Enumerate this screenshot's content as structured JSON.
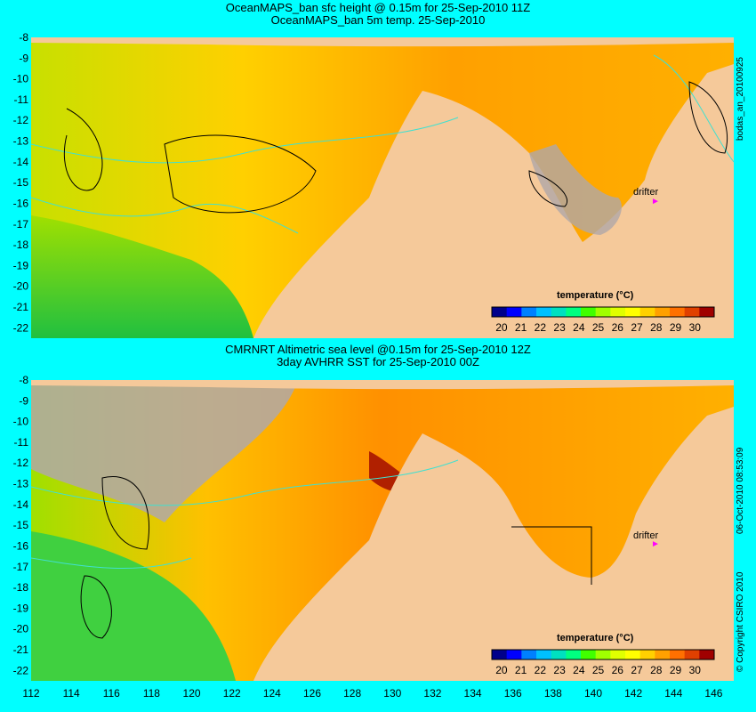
{
  "top_panel": {
    "title_line1": "OceanMAPS_ban sfc height @ 0.15m for 25-Sep-2010 11Z",
    "title_line2": "OceanMAPS_ban 5m temp. 25-Sep-2010",
    "side_label": "bodas_an_20100925",
    "drifter_label": "drifter",
    "legend_title": "temperature (°C)",
    "drifter_lon": 143.1,
    "drifter_lat": -15.9
  },
  "bottom_panel": {
    "title_line1": "CMRNRT Altimetric sea level  @0.15m  for 25-Sep-2010 12Z",
    "title_line2": "3day AVHRR SST for 25-Sep-2010 00Z",
    "side_label": "06-Oct-2010 08:53:09",
    "copyright": "© Copyright CSIRO 2010",
    "drifter_label": "drifter",
    "legend_title": "temperature (°C)",
    "drifter_lon": 143.1,
    "drifter_lat": -15.9
  },
  "axes": {
    "lat_ticks": [
      "-8",
      "-9",
      "-10",
      "-11",
      "-12",
      "-13",
      "-14",
      "-15",
      "-16",
      "-17",
      "-18",
      "-19",
      "-20",
      "-21",
      "-22"
    ],
    "lon_ticks": [
      "112",
      "114",
      "116",
      "118",
      "120",
      "122",
      "124",
      "126",
      "128",
      "130",
      "132",
      "134",
      "136",
      "138",
      "140",
      "142",
      "144",
      "146"
    ],
    "lon_range": [
      112,
      147
    ],
    "lat_range": [
      -8,
      -22.5
    ]
  },
  "colorbar": {
    "labels": [
      "20",
      "21",
      "22",
      "23",
      "24",
      "25",
      "26",
      "27",
      "28",
      "29",
      "30"
    ],
    "range": [
      19.5,
      31
    ],
    "colors": [
      "#00008b",
      "#0000ff",
      "#0080ff",
      "#00c0ff",
      "#00e0c0",
      "#00ff80",
      "#40ff00",
      "#a0ff00",
      "#e0ff00",
      "#ffff00",
      "#ffd000",
      "#ffa000",
      "#ff7000",
      "#e04000",
      "#a00000"
    ]
  },
  "colors": {
    "background": "#00ffff",
    "land": "#f5c99a",
    "gray_land": "#b0a8a8",
    "contour": "#40e0d0",
    "drifter": "#ff00ff"
  }
}
